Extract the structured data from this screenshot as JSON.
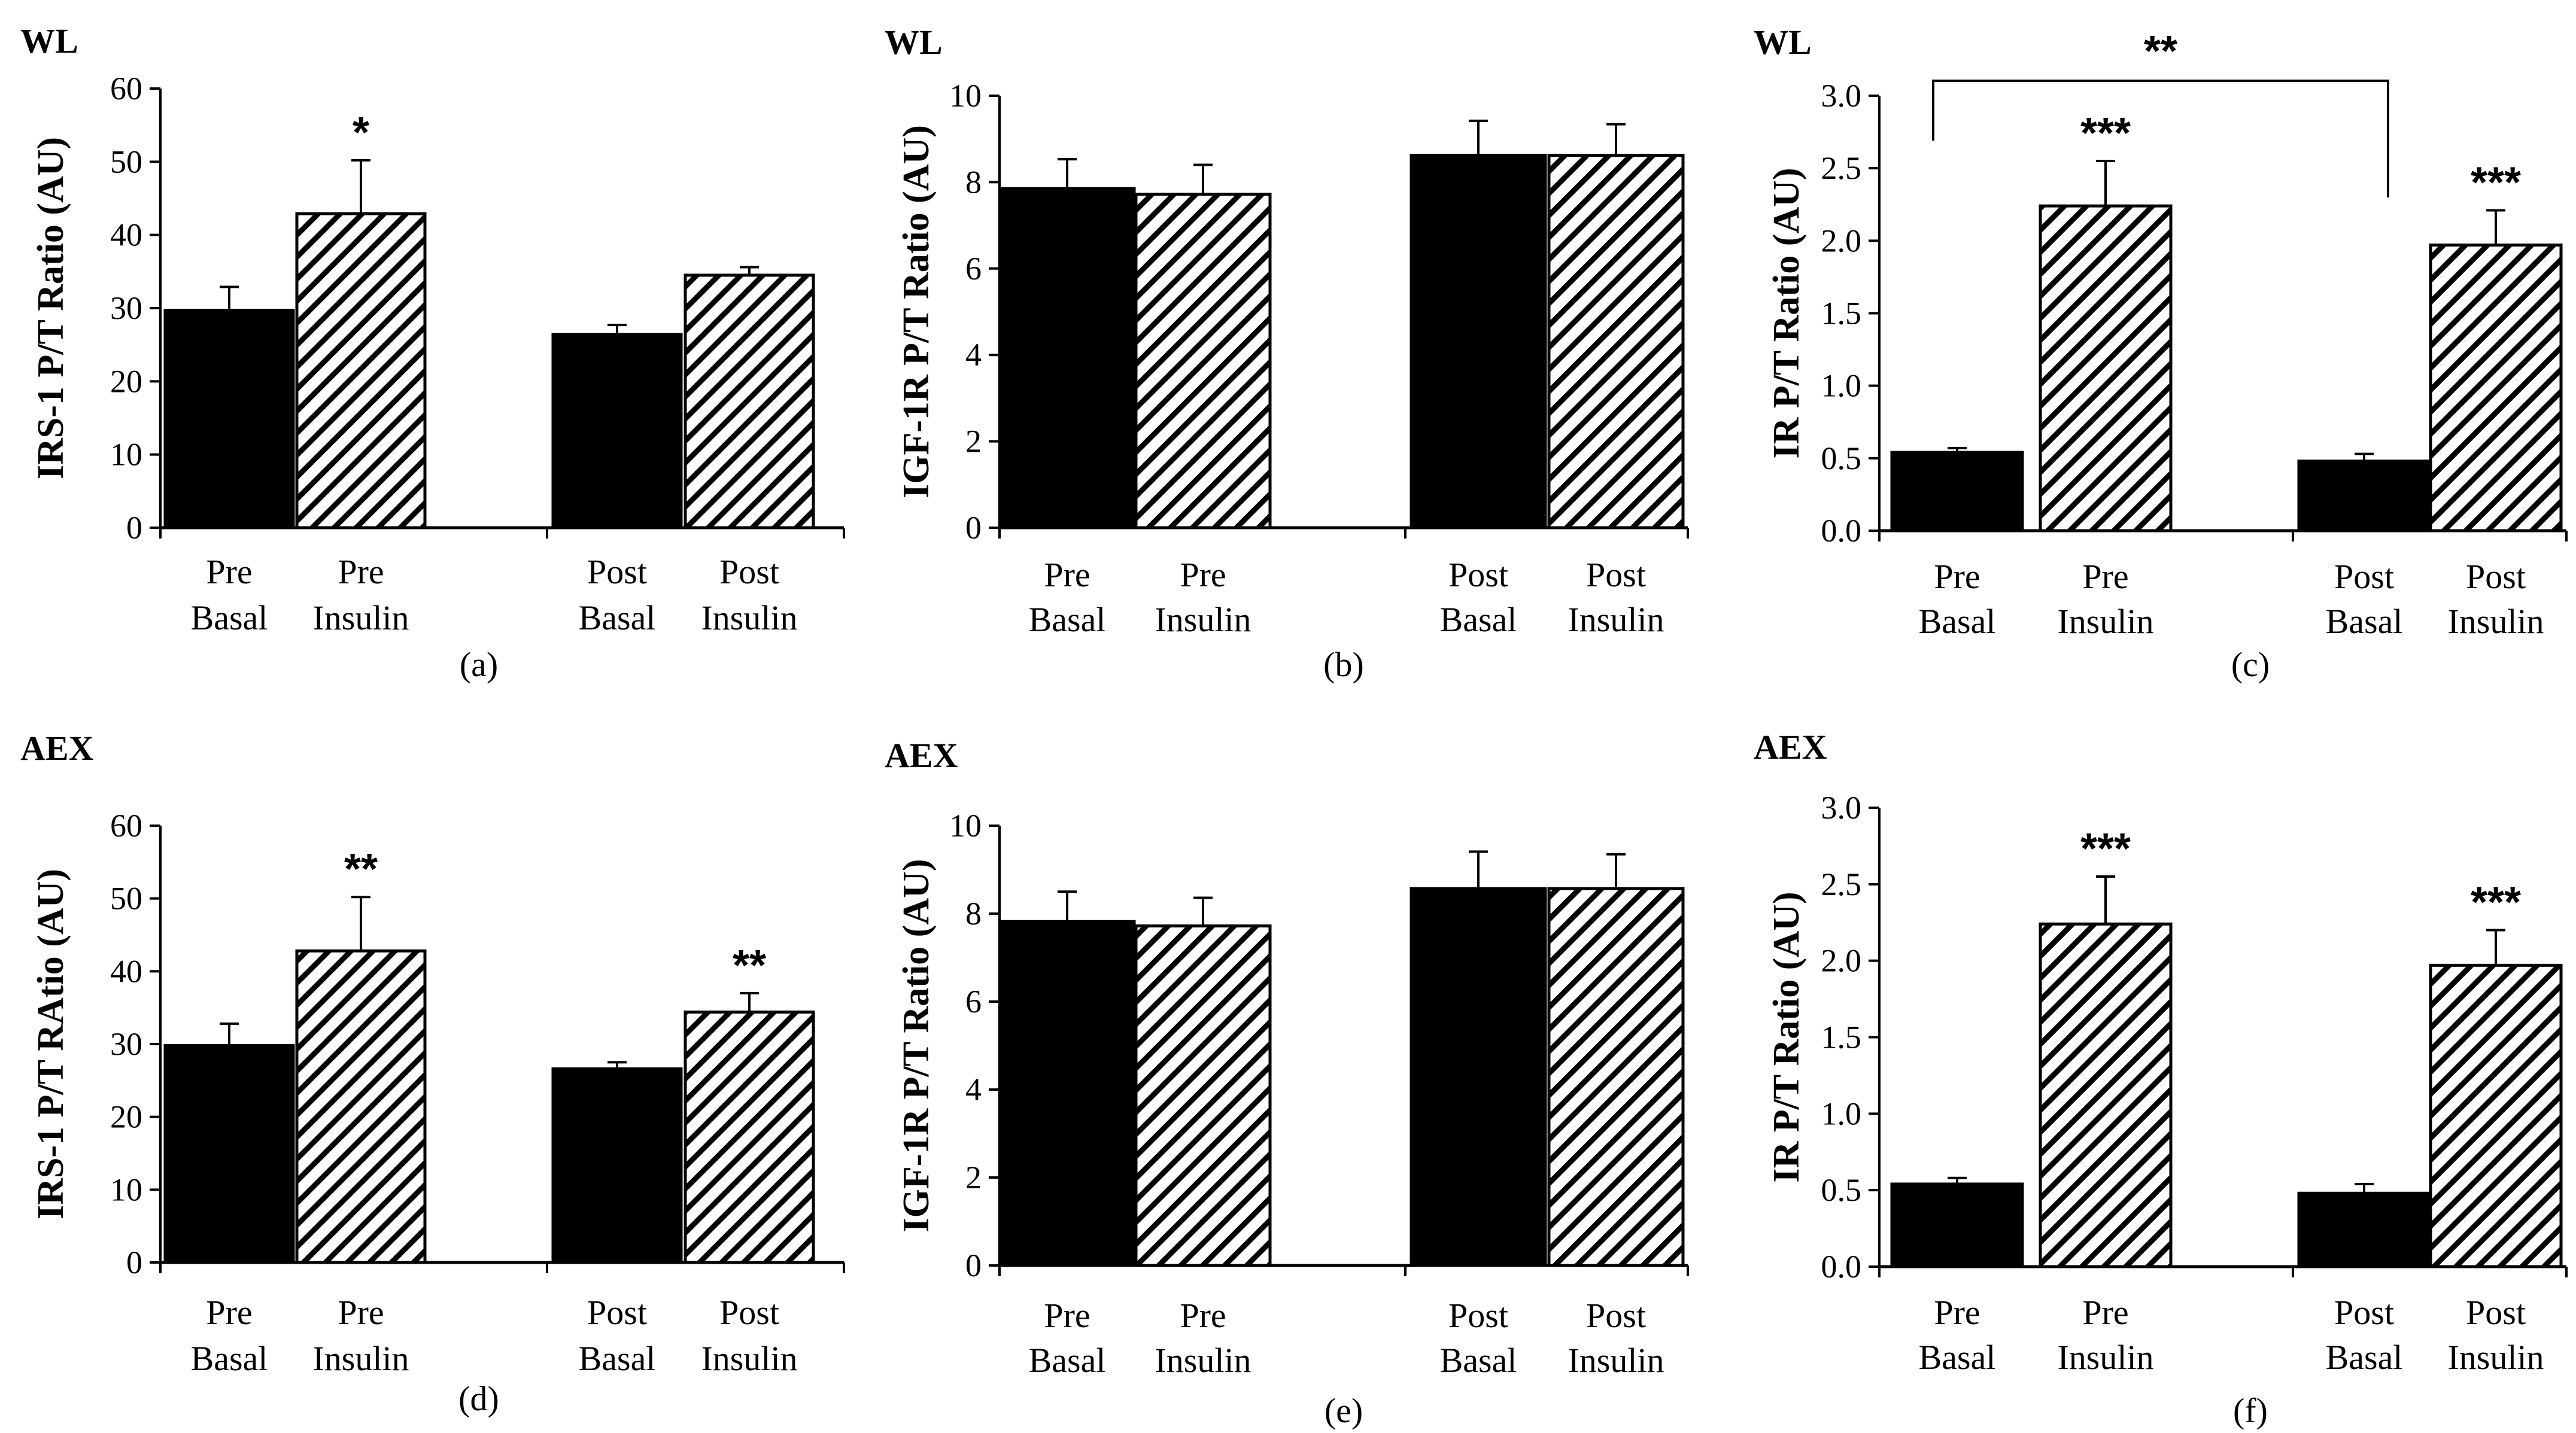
{
  "chart_data": [
    {
      "type": "bar",
      "panel": "(a)",
      "group": "WL",
      "ylabel": "IRS-1 P/T Ratio (AU)",
      "ylim": [
        0,
        60
      ],
      "yticks": [
        "0",
        "10",
        "20",
        "30",
        "40",
        "50",
        "60"
      ],
      "categories": [
        [
          "Pre",
          "Basal"
        ],
        [
          "Pre",
          "Insulin"
        ],
        [
          "Post",
          "Basal"
        ],
        [
          "Post",
          "Insulin"
        ]
      ],
      "fills": [
        "solid",
        "hatched",
        "solid",
        "hatched"
      ],
      "values": [
        29.7,
        42.9,
        26.4,
        34.5
      ],
      "errors": [
        3.2,
        7.3,
        1.3,
        1.1
      ],
      "annotations": [
        "",
        "*",
        "",
        ""
      ],
      "brackets": []
    },
    {
      "type": "bar",
      "panel": "(b)",
      "group": "WL",
      "ylabel": "IGF-1R P/T Ratio (AU)",
      "ylim": [
        0,
        10
      ],
      "yticks": [
        "0",
        "2",
        "4",
        "6",
        "8",
        "10"
      ],
      "categories": [
        [
          "Pre",
          "Basal"
        ],
        [
          "Pre",
          "Insulin"
        ],
        [
          "Post",
          "Basal"
        ],
        [
          "Post",
          "Insulin"
        ]
      ],
      "fills": [
        "solid",
        "hatched",
        "solid",
        "hatched"
      ],
      "values": [
        7.85,
        7.72,
        8.62,
        8.62
      ],
      "errors": [
        0.68,
        0.68,
        0.8,
        0.72
      ],
      "annotations": [
        "",
        "",
        "",
        ""
      ],
      "brackets": []
    },
    {
      "type": "bar",
      "panel": "(c)",
      "group": "WL",
      "ylabel": "IR P/T Ratio (AU)",
      "ylim": [
        0,
        3
      ],
      "yticks": [
        "0.0",
        "0.5",
        "1.0",
        "1.5",
        "2.0",
        "2.5",
        "3.0"
      ],
      "categories": [
        [
          "Pre",
          "Basal"
        ],
        [
          "Pre",
          "Insulin"
        ],
        [
          "Post",
          "Basal"
        ],
        [
          "Post",
          "Insulin"
        ]
      ],
      "fills": [
        "solid",
        "hatched",
        "solid",
        "hatched"
      ],
      "values": [
        0.54,
        2.24,
        0.48,
        1.97
      ],
      "errors": [
        0.03,
        0.31,
        0.05,
        0.24
      ],
      "annotations": [
        "",
        "***",
        "",
        "***"
      ],
      "brackets": [
        {
          "from": 0,
          "to": 2,
          "label": "**"
        }
      ]
    },
    {
      "type": "bar",
      "panel": "(d)",
      "group": "AEX",
      "ylabel": "IRS-1 P/T RAtio (AU)",
      "ylim": [
        0,
        60
      ],
      "yticks": [
        "0",
        "10",
        "20",
        "30",
        "40",
        "50",
        "60"
      ],
      "categories": [
        [
          "Pre",
          "Basal"
        ],
        [
          "Pre",
          "Insulin"
        ],
        [
          "Post",
          "Basal"
        ],
        [
          "Post",
          "Insulin"
        ]
      ],
      "fills": [
        "solid",
        "hatched",
        "solid",
        "hatched"
      ],
      "values": [
        29.8,
        42.8,
        26.6,
        34.4
      ],
      "errors": [
        3.0,
        7.4,
        0.9,
        2.6
      ],
      "annotations": [
        "",
        "**",
        "",
        "**"
      ],
      "brackets": []
    },
    {
      "type": "bar",
      "panel": "(e)",
      "group": "AEX",
      "ylabel": "IGF-1R P/T Ratio (AU)",
      "ylim": [
        0,
        10
      ],
      "yticks": [
        "0",
        "2",
        "4",
        "6",
        "8",
        "10"
      ],
      "categories": [
        [
          "Pre",
          "Basal"
        ],
        [
          "Pre",
          "Insulin"
        ],
        [
          "Post",
          "Basal"
        ],
        [
          "Post",
          "Insulin"
        ]
      ],
      "fills": [
        "solid",
        "hatched",
        "solid",
        "hatched"
      ],
      "values": [
        7.82,
        7.72,
        8.57,
        8.57
      ],
      "errors": [
        0.68,
        0.64,
        0.84,
        0.78
      ],
      "annotations": [
        "",
        "",
        "",
        ""
      ],
      "brackets": []
    },
    {
      "type": "bar",
      "panel": "(f)",
      "group": "AEX",
      "ylabel": "IR P/T Ratio (AU)",
      "ylim": [
        0,
        3
      ],
      "yticks": [
        "0.0",
        "0.5",
        "1.0",
        "1.5",
        "2.0",
        "2.5",
        "3.0"
      ],
      "categories": [
        [
          "Pre",
          "Basal"
        ],
        [
          "Pre",
          "Insulin"
        ],
        [
          "Post",
          "Basal"
        ],
        [
          "Post",
          "Insulin"
        ]
      ],
      "fills": [
        "solid",
        "hatched",
        "solid",
        "hatched"
      ],
      "values": [
        0.54,
        2.24,
        0.48,
        1.97
      ],
      "errors": [
        0.04,
        0.31,
        0.06,
        0.23
      ],
      "annotations": [
        "",
        "***",
        "",
        "***"
      ],
      "brackets": []
    }
  ]
}
